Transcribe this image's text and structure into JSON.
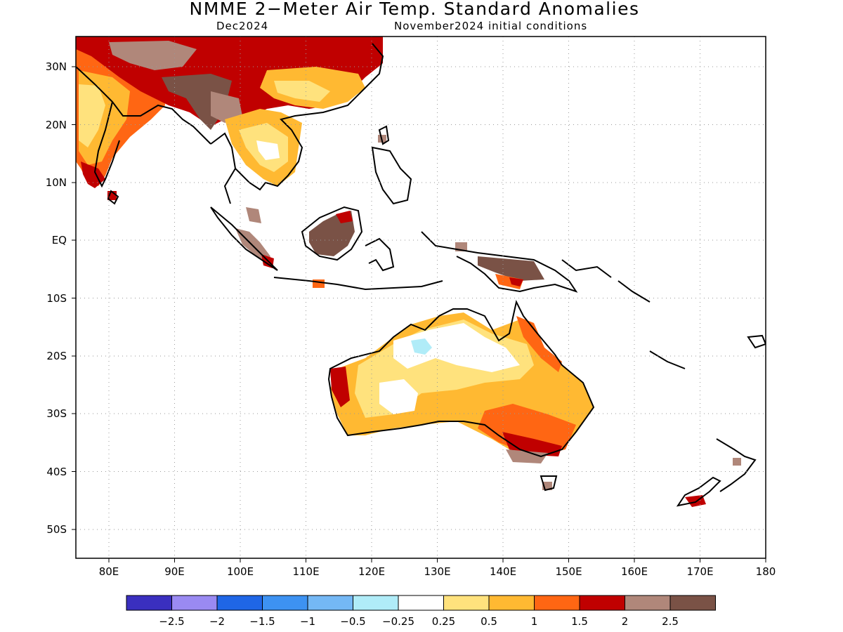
{
  "title": "NMME 2−Meter Air Temp. Standard Anomalies",
  "subtitle_left": "Dec2024",
  "subtitle_right": "November2024 initial conditions",
  "map": {
    "lat_ticks": [
      "30N",
      "20N",
      "10N",
      "EQ",
      "10S",
      "20S",
      "30S",
      "40S",
      "50S"
    ],
    "lon_ticks": [
      "80E",
      "90E",
      "100E",
      "110E",
      "120E",
      "130E",
      "140E",
      "150E",
      "160E",
      "170E",
      "180"
    ],
    "lon_range": [
      75,
      180
    ],
    "lat_range": [
      -55,
      35
    ],
    "grid": true
  },
  "legend": {
    "colors": [
      "#3a2fbf",
      "#9a8af2",
      "#1f66e6",
      "#3d92f2",
      "#74b8f5",
      "#b0ecf8",
      "#ffffff",
      "#ffe27d",
      "#ffb932",
      "#ff6613",
      "#c00000",
      "#b0877a",
      "#7a5246"
    ],
    "labels": [
      "−2.5",
      "−2",
      "−1.5",
      "−1",
      "−0.5",
      "−0.25",
      "0.25",
      "0.5",
      "1",
      "1.5",
      "2",
      "2.5"
    ]
  }
}
